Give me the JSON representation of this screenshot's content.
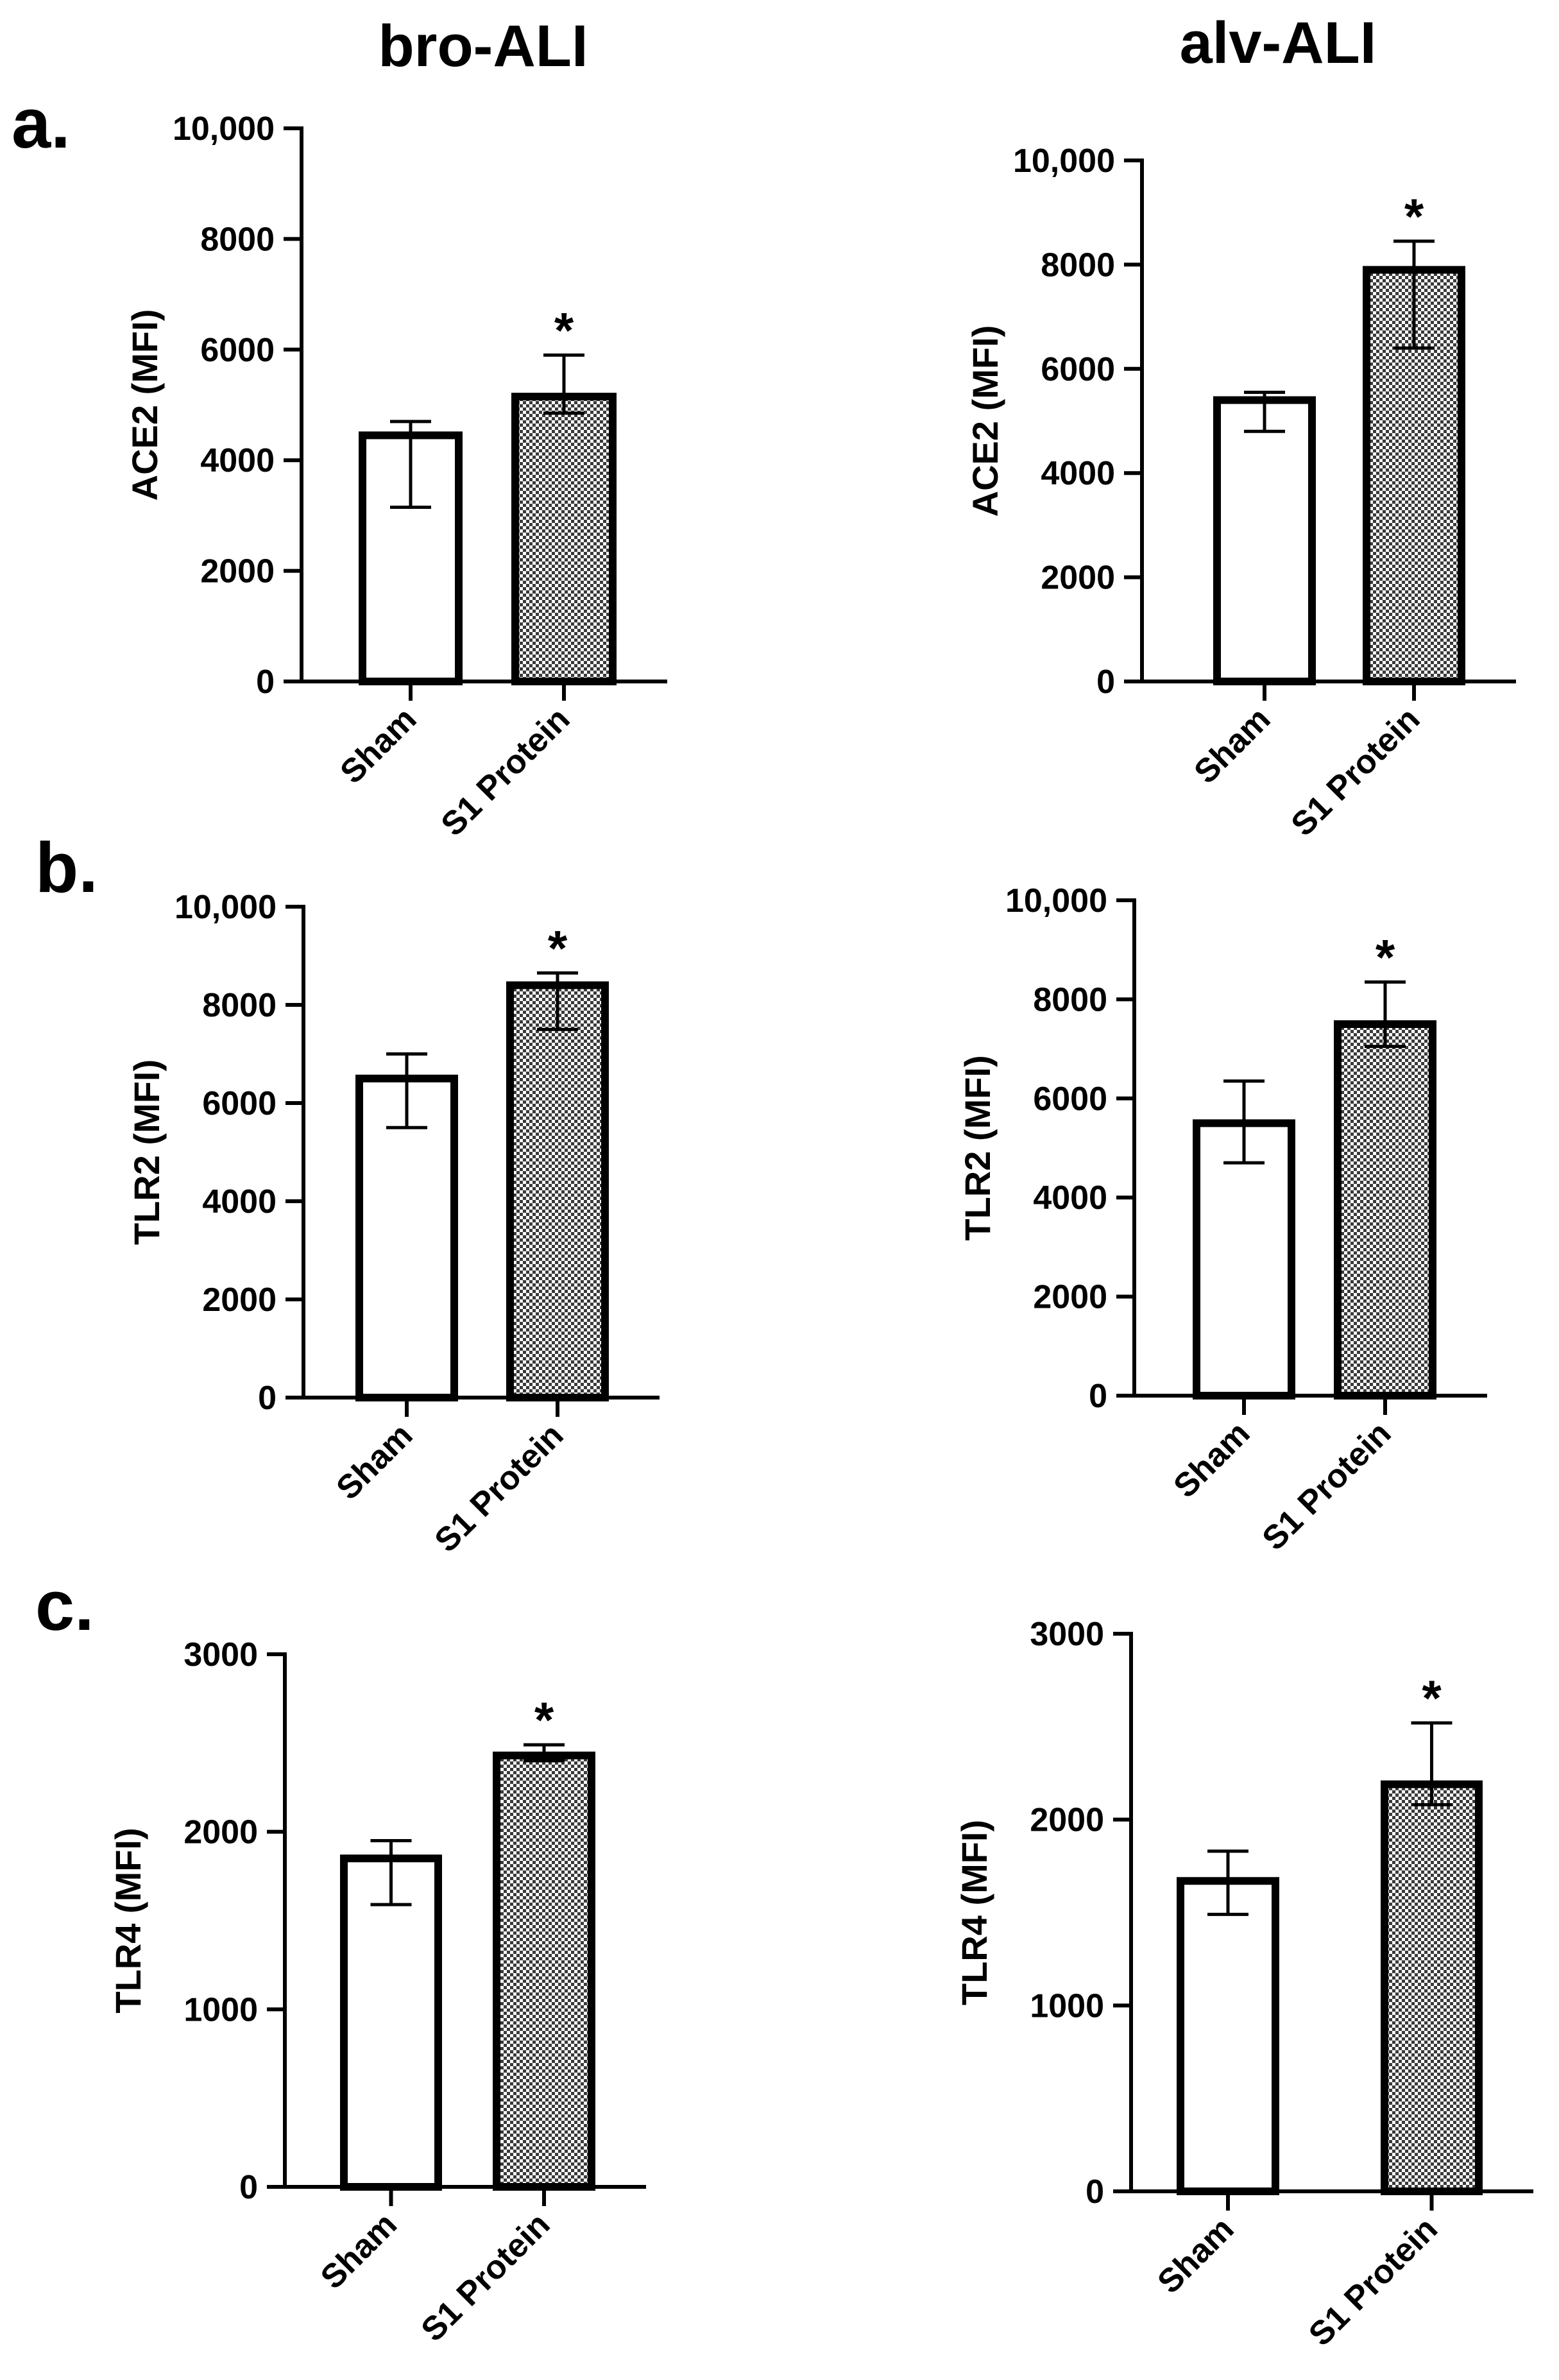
{
  "columns": {
    "left_title": "bro-ALI",
    "right_title": "alv-ALI"
  },
  "panel_labels": [
    "a.",
    "b.",
    "c."
  ],
  "colors": {
    "axis": "#000000",
    "sham_fill": "#ffffff",
    "s1_fill_dark": "#3a3a3a",
    "s1_fill_light": "#ffffff"
  },
  "chart_data": [
    {
      "id": "a-bro",
      "type": "bar",
      "title": "bro-ALI",
      "ylabel": "ACE2 (MFI)",
      "xlabel": "",
      "ylim": [
        0,
        10000
      ],
      "yticks": [
        0,
        2000,
        4000,
        6000,
        8000,
        10000
      ],
      "ytick_labels": [
        "0",
        "2000",
        "4000",
        "6000",
        "8000",
        "10,000"
      ],
      "categories": [
        "Sham",
        "S1 Protein"
      ],
      "values": [
        4450,
        5150
      ],
      "error_upper": [
        4700,
        5900
      ],
      "error_lower": [
        3150,
        4850
      ],
      "significance": [
        "",
        "*"
      ]
    },
    {
      "id": "a-alv",
      "type": "bar",
      "title": "alv-ALI",
      "ylabel": "ACE2 (MFI)",
      "xlabel": "",
      "ylim": [
        0,
        10000
      ],
      "yticks": [
        0,
        2000,
        4000,
        6000,
        8000,
        10000
      ],
      "ytick_labels": [
        "0",
        "2000",
        "4000",
        "6000",
        "8000",
        "10,000"
      ],
      "categories": [
        "Sham",
        "S1 Protein"
      ],
      "values": [
        5400,
        7900
      ],
      "error_upper": [
        5550,
        8450
      ],
      "error_lower": [
        4800,
        6400
      ],
      "significance": [
        "",
        "*"
      ]
    },
    {
      "id": "b-bro",
      "type": "bar",
      "title": "bro-ALI",
      "ylabel": "TLR2 (MFI)",
      "xlabel": "",
      "ylim": [
        0,
        10000
      ],
      "yticks": [
        0,
        2000,
        4000,
        6000,
        8000,
        10000
      ],
      "ytick_labels": [
        "0",
        "2000",
        "4000",
        "6000",
        "8000",
        "10,000"
      ],
      "categories": [
        "Sham",
        "S1 Protein"
      ],
      "values": [
        6500,
        8400
      ],
      "error_upper": [
        7000,
        8650
      ],
      "error_lower": [
        5500,
        7500
      ],
      "significance": [
        "",
        "*"
      ]
    },
    {
      "id": "b-alv",
      "type": "bar",
      "title": "alv-ALI",
      "ylabel": "TLR2 (MFI)",
      "xlabel": "",
      "ylim": [
        0,
        10000
      ],
      "yticks": [
        0,
        2000,
        4000,
        6000,
        8000,
        10000
      ],
      "ytick_labels": [
        "0",
        "2000",
        "4000",
        "6000",
        "8000",
        "10,000"
      ],
      "categories": [
        "Sham",
        "S1 Protein"
      ],
      "values": [
        5500,
        7500
      ],
      "error_upper": [
        6350,
        8350
      ],
      "error_lower": [
        4700,
        7050
      ],
      "significance": [
        "",
        "*"
      ]
    },
    {
      "id": "c-bro",
      "type": "bar",
      "title": "bro-ALI",
      "ylabel": "TLR4 (MFI)",
      "xlabel": "",
      "ylim": [
        0,
        3000
      ],
      "yticks": [
        0,
        1000,
        2000,
        3000
      ],
      "ytick_labels": [
        "0",
        "1000",
        "2000",
        "3000"
      ],
      "categories": [
        "Sham",
        "S1 Protein"
      ],
      "values": [
        1850,
        2430
      ],
      "error_upper": [
        1950,
        2490
      ],
      "error_lower": [
        1590,
        2400
      ],
      "significance": [
        "",
        "*"
      ]
    },
    {
      "id": "c-alv",
      "type": "bar",
      "title": "alv-ALI",
      "ylabel": "TLR4 (MFI)",
      "xlabel": "",
      "ylim": [
        0,
        3000
      ],
      "yticks": [
        0,
        1000,
        2000,
        3000
      ],
      "ytick_labels": [
        "0",
        "1000",
        "2000",
        "3000"
      ],
      "categories": [
        "Sham",
        "S1 Protein"
      ],
      "values": [
        1670,
        2190
      ],
      "error_upper": [
        1830,
        2520
      ],
      "error_lower": [
        1490,
        2080
      ],
      "significance": [
        "",
        "*"
      ]
    }
  ]
}
